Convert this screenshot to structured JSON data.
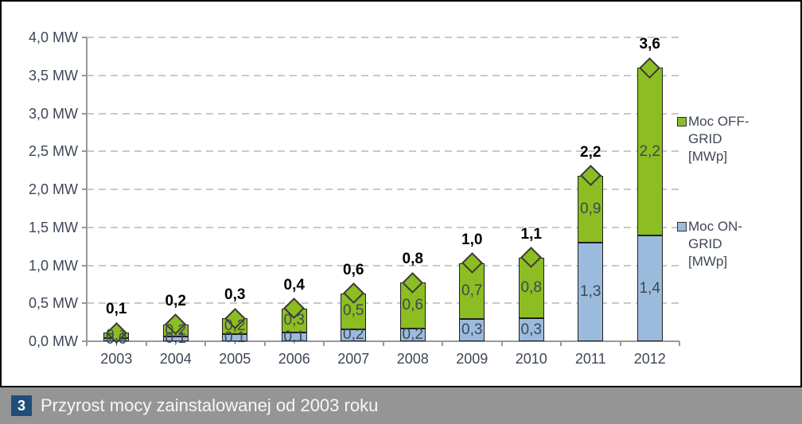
{
  "chart_data": {
    "type": "bar",
    "stacked": true,
    "categories": [
      "2003",
      "2004",
      "2005",
      "2006",
      "2007",
      "2008",
      "2009",
      "2010",
      "2011",
      "2012"
    ],
    "series": [
      {
        "name": "Moc ON-GRID [MWp]",
        "color": "#9bbbdd",
        "values": [
          0.04,
          0.06,
          0.09,
          0.11,
          0.16,
          0.17,
          0.29,
          0.3,
          1.3,
          1.39
        ],
        "labels": [
          "0,0",
          "0,1",
          "0,1",
          "0,1",
          "0,2",
          "0,2",
          "0,3",
          "0,3",
          "1,3",
          "1,4"
        ]
      },
      {
        "name": "Moc OFF-GRID [MWp]",
        "color": "#8cbd22",
        "values": [
          0.07,
          0.16,
          0.21,
          0.32,
          0.47,
          0.6,
          0.74,
          0.8,
          0.88,
          2.21
        ],
        "labels": [
          "0,1",
          "0,2",
          "0,2",
          "0,3",
          "0,5",
          "0,6",
          "0,7",
          "0,8",
          "0,9",
          "2,2"
        ]
      }
    ],
    "totals": {
      "values": [
        0.1,
        0.2,
        0.3,
        0.4,
        0.6,
        0.8,
        1.0,
        1.1,
        2.2,
        3.6
      ],
      "labels": [
        "0,1",
        "0,2",
        "0,3",
        "0,4",
        "0,6",
        "0,8",
        "1,0",
        "1,1",
        "2,2",
        "3,6"
      ],
      "marker": "diamond"
    },
    "y_axis": {
      "min": 0,
      "max": 4,
      "step": 0.5,
      "ticks": [
        "0,0 MW",
        "0,5 MW",
        "1,0 MW",
        "1,5 MW",
        "2,0 MW",
        "2,5 MW",
        "3,0 MW",
        "3,5 MW",
        "4,0 MW"
      ]
    },
    "legend": {
      "position": "right",
      "entries": [
        {
          "label": "Moc OFF-GRID [MWp]",
          "color": "#8cbd22"
        },
        {
          "label": "Moc ON-GRID [MWp]",
          "color": "#9bbbdd"
        }
      ]
    },
    "grid": {
      "horizontal": true,
      "style": "dashed",
      "color": "#c9c9c9"
    }
  },
  "caption": {
    "badge": "3",
    "title": "Przyrost mocy zainstalowanej od 2003 roku"
  },
  "colors": {
    "off_grid": "#8cbd22",
    "on_grid": "#9bbbdd",
    "marker_fill": "#8cbd22",
    "bar_border": "#1f1f1f",
    "axis": "#999999",
    "grid": "#c9c9c9",
    "tick_text": "#3f4756",
    "total_text": "#000000",
    "caption_bg": "#959595",
    "badge_bg": "#1f4e79",
    "caption_text": "#f7f7f7",
    "chart_border": "#000000"
  }
}
